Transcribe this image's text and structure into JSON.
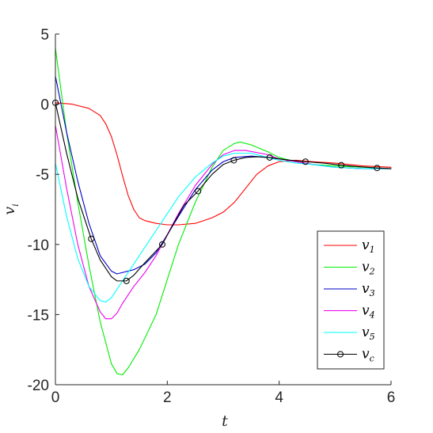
{
  "chart_data": {
    "type": "line",
    "title": "",
    "xlabel": "t",
    "ylabel_base": "v",
    "ylabel_sub": "i",
    "xlim": [
      0,
      6
    ],
    "ylim": [
      -20,
      5
    ],
    "xticks": [
      0,
      2,
      4,
      6
    ],
    "yticks": [
      5,
      0,
      -5,
      -10,
      -15,
      -20
    ],
    "xtick_labels": [
      "0",
      "2",
      "4",
      "6"
    ],
    "ytick_labels": [
      "5",
      "0",
      "-5",
      "-10",
      "-15",
      "-20"
    ],
    "grid": false,
    "legend_position": "bottom-right",
    "series": [
      {
        "name_base": "v",
        "name_sub": "1",
        "color": "#ff0000",
        "marker": "none",
        "x": [
          0,
          0.3,
          0.6,
          0.8,
          0.9,
          1.0,
          1.1,
          1.2,
          1.3,
          1.4,
          1.5,
          1.6,
          1.8,
          2.0,
          2.2,
          2.5,
          2.8,
          3.0,
          3.2,
          3.4,
          3.6,
          3.8,
          4.0,
          4.3,
          4.6,
          5.0,
          5.5,
          6.0
        ],
        "y": [
          0.1,
          0.0,
          -0.3,
          -0.8,
          -1.4,
          -2.3,
          -3.6,
          -5.1,
          -6.5,
          -7.5,
          -8.1,
          -8.3,
          -8.5,
          -8.6,
          -8.6,
          -8.5,
          -8.1,
          -7.7,
          -7.0,
          -6.0,
          -5.0,
          -4.4,
          -4.1,
          -4.0,
          -4.1,
          -4.2,
          -4.4,
          -4.5
        ]
      },
      {
        "name_base": "v",
        "name_sub": "2",
        "color": "#00ee00",
        "marker": "none",
        "x": [
          0,
          0.1,
          0.2,
          0.4,
          0.6,
          0.8,
          1.0,
          1.1,
          1.2,
          1.3,
          1.5,
          1.8,
          2.0,
          2.2,
          2.5,
          2.8,
          3.0,
          3.2,
          3.3,
          3.5,
          3.8,
          4.0,
          4.3,
          4.6,
          5.0,
          5.5,
          6.0
        ],
        "y": [
          4.0,
          1.0,
          -2.0,
          -7.0,
          -11.5,
          -15.5,
          -18.5,
          -19.2,
          -19.3,
          -18.8,
          -17.5,
          -15.0,
          -12.5,
          -10.0,
          -7.0,
          -4.5,
          -3.3,
          -2.8,
          -2.7,
          -2.9,
          -3.4,
          -3.8,
          -4.1,
          -4.3,
          -4.4,
          -4.5,
          -4.6
        ]
      },
      {
        "name_base": "v",
        "name_sub": "3",
        "color": "#0000c8",
        "marker": "none",
        "x": [
          0,
          0.2,
          0.4,
          0.6,
          0.8,
          1.0,
          1.1,
          1.2,
          1.4,
          1.6,
          1.8,
          2.0,
          2.2,
          2.5,
          2.8,
          3.0,
          3.2,
          3.5,
          3.8,
          4.0,
          4.3,
          4.6,
          5.0,
          5.5,
          6.0
        ],
        "y": [
          2.0,
          -2.0,
          -5.5,
          -8.5,
          -10.8,
          -11.9,
          -12.1,
          -12.0,
          -11.8,
          -11.4,
          -10.6,
          -9.3,
          -8.0,
          -6.1,
          -4.7,
          -4.1,
          -3.8,
          -3.7,
          -3.8,
          -3.9,
          -4.1,
          -4.3,
          -4.5,
          -4.6,
          -4.6
        ]
      },
      {
        "name_base": "v",
        "name_sub": "4",
        "color": "#ee00ee",
        "marker": "none",
        "x": [
          0,
          0.2,
          0.4,
          0.6,
          0.8,
          0.9,
          1.0,
          1.1,
          1.2,
          1.4,
          1.6,
          1.8,
          2.0,
          2.2,
          2.5,
          2.8,
          3.0,
          3.2,
          3.4,
          3.8,
          4.0,
          4.3,
          4.6,
          5.0,
          5.5,
          6.0
        ],
        "y": [
          -1.5,
          -6.0,
          -10.0,
          -13.0,
          -14.8,
          -15.3,
          -15.3,
          -14.9,
          -14.2,
          -13.0,
          -12.0,
          -10.8,
          -9.3,
          -7.8,
          -5.8,
          -4.3,
          -3.6,
          -3.3,
          -3.3,
          -3.6,
          -3.9,
          -4.1,
          -4.3,
          -4.5,
          -4.6,
          -4.6
        ]
      },
      {
        "name_base": "v",
        "name_sub": "5",
        "color": "#00ffff",
        "marker": "none",
        "x": [
          0,
          0.2,
          0.4,
          0.6,
          0.8,
          0.9,
          1.0,
          1.2,
          1.4,
          1.6,
          1.8,
          2.0,
          2.2,
          2.5,
          2.8,
          3.0,
          3.2,
          3.5,
          3.8,
          4.0,
          4.3,
          4.6,
          5.0,
          5.5,
          6.0
        ],
        "y": [
          -4.2,
          -8.0,
          -11.0,
          -13.0,
          -14.0,
          -14.1,
          -13.8,
          -12.6,
          -11.4,
          -10.2,
          -9.0,
          -7.8,
          -6.6,
          -5.2,
          -4.2,
          -3.7,
          -3.5,
          -3.5,
          -3.8,
          -4.0,
          -4.2,
          -4.3,
          -4.5,
          -4.6,
          -4.6
        ]
      },
      {
        "name_base": "v",
        "name_sub": "c",
        "color": "#000000",
        "marker": "circle",
        "x": [
          0,
          0.2,
          0.4,
          0.64,
          0.8,
          1.0,
          1.1,
          1.27,
          1.4,
          1.6,
          1.91,
          2.1,
          2.3,
          2.55,
          2.8,
          3.0,
          3.19,
          3.4,
          3.6,
          3.83,
          4.0,
          4.2,
          4.47,
          4.8,
          5.11,
          5.4,
          5.75,
          6.0
        ],
        "y": [
          0.1,
          -3.5,
          -6.7,
          -9.6,
          -11.1,
          -12.3,
          -12.6,
          -12.6,
          -12.2,
          -11.3,
          -10.0,
          -8.6,
          -7.2,
          -6.2,
          -5.0,
          -4.3,
          -4.0,
          -3.8,
          -3.75,
          -3.8,
          -3.9,
          -4.0,
          -4.1,
          -4.2,
          -4.35,
          -4.45,
          -4.55,
          -4.6
        ],
        "marker_indices": [
          0,
          3,
          7,
          10,
          13,
          16,
          19,
          22,
          24,
          26
        ]
      }
    ]
  }
}
